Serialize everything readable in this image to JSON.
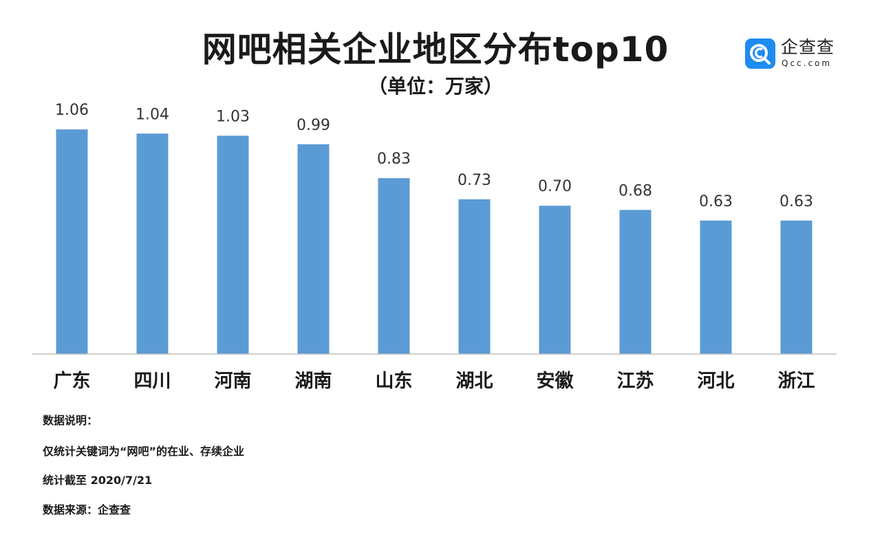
{
  "header": {
    "title": "网吧相关企业地区分布top10",
    "subtitle": "（单位：万家）"
  },
  "brand": {
    "name": "企查查",
    "sub": "Qcc.com",
    "color": "#1e8bf0"
  },
  "chart_data": {
    "type": "bar",
    "title": "网吧相关企业地区分布top10",
    "subtitle": "（单位：万家）",
    "categories": [
      "广东",
      "四川",
      "河南",
      "湖南",
      "山东",
      "湖北",
      "安徽",
      "江苏",
      "河北",
      "浙江"
    ],
    "values": [
      1.06,
      1.04,
      1.03,
      0.99,
      0.83,
      0.73,
      0.7,
      0.68,
      0.63,
      0.63
    ],
    "value_labels": [
      "1.06",
      "1.04",
      "1.03",
      "0.99",
      "0.83",
      "0.73",
      "0.70",
      "0.68",
      "0.63",
      "0.63"
    ],
    "ylim": [
      0,
      1.2
    ],
    "grid": false,
    "bar_color": "#5b9bd5",
    "axis_color": "#bfbfbf"
  },
  "notes": {
    "heading": "数据说明：",
    "line1": "仅统计关键词为“网吧”的在业、存续企业",
    "line2": "统计截至 2020/7/21",
    "source": "数据来源：企查查"
  }
}
